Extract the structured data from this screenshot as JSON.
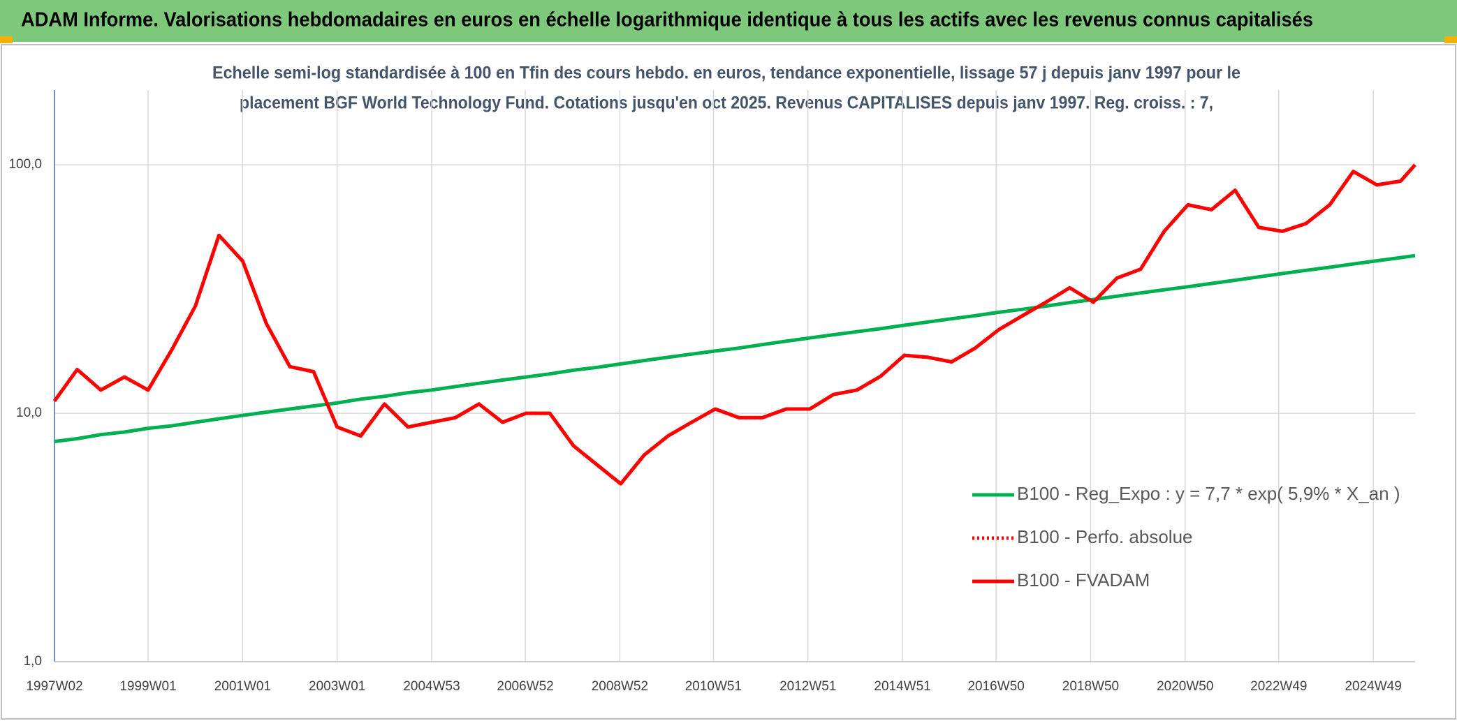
{
  "chart_data": {
    "type": "line",
    "title": "ADAM Informe. Valorisations hebdomadaires en euros en échelle logarithmique identique à tous les actifs avec les revenus connus capitalisés",
    "subtitle": [
      "Echelle semi-log standardisée à 100 en Tfin des cours hebdo. en euros, tendance exponentielle, lissage 57 j depuis janv 1997 pour le",
      "placement BGF World Technology Fund. Cotations jusqu'en oct 2025. Revenus CAPITALISES depuis janv 1997. Reg. croiss. : 7,"
    ],
    "x": [
      "1997W02",
      "1997W27",
      "1998W01",
      "1998W27",
      "1999W01",
      "1999W27",
      "2000W01",
      "2000W27",
      "2001W01",
      "2001W27",
      "2002W01",
      "2002W27",
      "2003W01",
      "2003W27",
      "2004W01",
      "2004W27",
      "2005W01",
      "2005W27",
      "2006W01",
      "2006W27",
      "2007W01",
      "2007W27",
      "2008W01",
      "2008W27",
      "2009W01",
      "2009W27",
      "2010W01",
      "2010W27",
      "2011W01",
      "2011W27",
      "2012W01",
      "2012W27",
      "2013W01",
      "2013W27",
      "2014W01",
      "2014W27",
      "2015W01",
      "2015W27",
      "2016W01",
      "2016W27",
      "2017W01",
      "2017W27",
      "2018W01",
      "2018W27",
      "2019W01",
      "2019W27",
      "2020W01",
      "2020W27",
      "2021W01",
      "2021W27",
      "2022W01",
      "2022W27",
      "2023W01",
      "2023W27",
      "2024W01",
      "2024W27",
      "2025W01",
      "2025W27",
      "2025W43"
    ],
    "series": [
      {
        "name": "B100 - Reg_Expo : y = 7,7 * exp( 5,9% *  X_an )",
        "color": "#00b050",
        "dash": "solid",
        "values": [
          7.7,
          7.9,
          8.2,
          8.4,
          8.7,
          8.9,
          9.2,
          9.5,
          9.8,
          10.1,
          10.4,
          10.7,
          11.0,
          11.4,
          11.7,
          12.1,
          12.4,
          12.8,
          13.2,
          13.6,
          14.0,
          14.4,
          14.9,
          15.3,
          15.8,
          16.3,
          16.8,
          17.3,
          17.8,
          18.3,
          18.9,
          19.5,
          20.1,
          20.7,
          21.3,
          21.9,
          22.6,
          23.3,
          24.0,
          24.7,
          25.5,
          26.2,
          27.0,
          27.9,
          28.7,
          29.6,
          30.5,
          31.4,
          32.3,
          33.3,
          34.3,
          35.4,
          36.5,
          37.6,
          38.7,
          39.9,
          41.1,
          42.3,
          43.1
        ]
      },
      {
        "name": "B100 - Perfo. absolue",
        "color": "#ff0000",
        "dash": "dotted",
        "values": [
          11.2,
          15,
          12.4,
          14,
          12.4,
          18,
          27,
          52,
          41,
          23,
          15.4,
          14.7,
          8.8,
          8.1,
          10.9,
          8.8,
          9.2,
          9.6,
          10.9,
          9.2,
          10,
          10,
          7.4,
          6.2,
          5.2,
          6.8,
          8.1,
          9.2,
          10.4,
          9.6,
          9.6,
          10.4,
          10.4,
          11.9,
          12.4,
          14.1,
          17.1,
          16.8,
          16.1,
          18.3,
          21.7,
          24.7,
          28,
          32,
          28,
          35,
          38,
          54,
          69,
          66,
          79,
          56,
          54,
          58,
          69,
          94,
          83,
          86,
          100
        ]
      },
      {
        "name": "B100 - FVADAM",
        "color": "#ff0000",
        "dash": "solid",
        "values": [
          11.2,
          15,
          12.4,
          14,
          12.4,
          18,
          27,
          52,
          41,
          23,
          15.4,
          14.7,
          8.8,
          8.1,
          10.9,
          8.8,
          9.2,
          9.6,
          10.9,
          9.2,
          10,
          10,
          7.4,
          6.2,
          5.2,
          6.8,
          8.1,
          9.2,
          10.4,
          9.6,
          9.6,
          10.4,
          10.4,
          11.9,
          12.4,
          14.1,
          17.1,
          16.8,
          16.1,
          18.3,
          21.7,
          24.7,
          28,
          32,
          28,
          35,
          38,
          54,
          69,
          66,
          79,
          56,
          54,
          58,
          69,
          94,
          83,
          86,
          100
        ]
      }
    ],
    "xlim": [
      "1997W02",
      "2025W43"
    ],
    "xticks": [
      "1997W02",
      "1999W01",
      "2001W01",
      "2003W01",
      "2004W53",
      "2006W52",
      "2008W52",
      "2010W51",
      "2012W51",
      "2014W51",
      "2016W50",
      "2018W50",
      "2020W50",
      "2022W49",
      "2024W49"
    ],
    "ylim": [
      1,
      200
    ],
    "yticks": [
      {
        "value": 1,
        "label": "1,0"
      },
      {
        "value": 10,
        "label": "10,0"
      },
      {
        "value": 100,
        "label": "100,0"
      }
    ],
    "log_y": true,
    "grid": true
  }
}
